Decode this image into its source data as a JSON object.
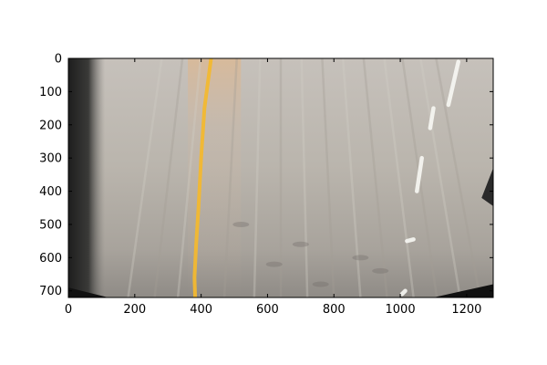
{
  "chart_data": {
    "type": "image",
    "image_subject": "bird's-eye (perspective-warped) view of a road surface with a yellow lane line and white dashed lane markings",
    "x_ticks": [
      "0",
      "200",
      "400",
      "600",
      "800",
      "1000",
      "1200"
    ],
    "x_tick_values": [
      0,
      200,
      400,
      600,
      800,
      1000,
      1200
    ],
    "y_ticks": [
      "0",
      "100",
      "200",
      "300",
      "400",
      "500",
      "600",
      "700"
    ],
    "y_tick_values": [
      0,
      100,
      200,
      300,
      400,
      500,
      600,
      700
    ],
    "xlim": [
      0,
      1280
    ],
    "ylim": [
      720,
      0
    ],
    "y_axis_inverted": true,
    "grid": false,
    "colors": {
      "road": "#bdb8b0",
      "yellow_line": "#f2b830",
      "white_marking": "#f6f6f2",
      "dark_border": "#222222"
    },
    "features": {
      "yellow_lane_line": {
        "x": [
          430,
          410,
          400,
          392,
          385,
          380,
          382
        ],
        "y": [
          0,
          150,
          300,
          450,
          560,
          660,
          720
        ]
      },
      "white_dashes": [
        {
          "x": [
            1145,
            1175
          ],
          "y": [
            140,
            10
          ]
        },
        {
          "x": [
            1090,
            1100
          ],
          "y": [
            210,
            150
          ]
        },
        {
          "x": [
            1050,
            1065
          ],
          "y": [
            400,
            300
          ]
        },
        {
          "x": [
            1020,
            1040
          ],
          "y": [
            550,
            545
          ]
        },
        {
          "x": [
            1005,
            1015
          ],
          "y": [
            710,
            700
          ]
        }
      ]
    }
  }
}
